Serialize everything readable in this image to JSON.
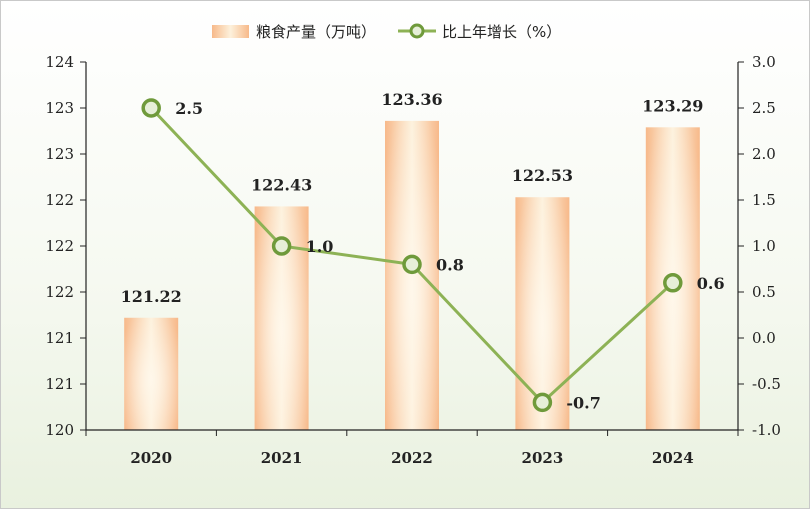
{
  "chart_data": {
    "type": "bar+line",
    "categories": [
      "2020",
      "2021",
      "2022",
      "2023",
      "2024"
    ],
    "series": [
      {
        "name": "粮食产量（万吨）",
        "type": "bar",
        "axis": "left",
        "values": [
          121.22,
          122.43,
          123.36,
          122.53,
          123.29
        ],
        "labels": [
          "121.22",
          "122.43",
          "123.36",
          "122.53",
          "123.29"
        ]
      },
      {
        "name": "比上年增长（%）",
        "type": "line",
        "axis": "right",
        "values": [
          2.5,
          1.0,
          0.8,
          -0.7,
          0.6
        ],
        "labels": [
          "2.5",
          "1.0",
          "0.8",
          "-0.7",
          "0.6"
        ]
      }
    ],
    "left_axis": {
      "ylim": [
        120,
        124
      ],
      "ticks": [
        120,
        120.5,
        121,
        121.5,
        122,
        122.5,
        123,
        123.5,
        124
      ],
      "tick_labels": [
        "120",
        "121",
        "121",
        "122",
        "122",
        "122",
        "123",
        "123",
        "124"
      ]
    },
    "right_axis": {
      "ylim": [
        -1.0,
        3.0
      ],
      "ticks": [
        -1.0,
        -0.5,
        0.0,
        0.5,
        1.0,
        1.5,
        2.0,
        2.5,
        3.0
      ],
      "tick_labels": [
        "-1.0",
        "-0.5",
        "0.0",
        "0.5",
        "1.0",
        "1.5",
        "2.0",
        "2.5",
        "3.0"
      ]
    },
    "legend_position": "top-center",
    "grid": false,
    "colors": {
      "bar_edge": "#f7b98a",
      "bar_center": "#fdf1dc",
      "line": "#8db255",
      "marker_edge": "#6f9a3b",
      "marker_fill": "#e6efd8"
    }
  }
}
